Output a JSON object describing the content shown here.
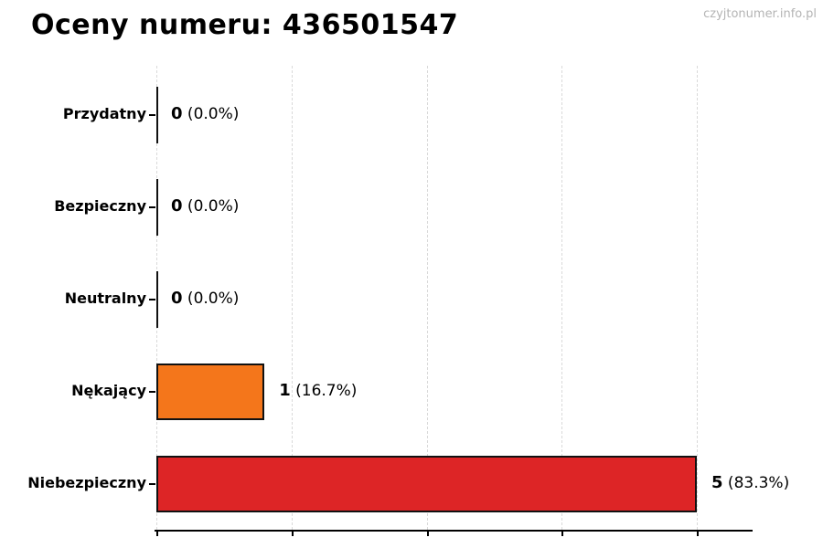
{
  "page": {
    "watermark": "czyjtonumer.info.pl"
  },
  "chart_data": {
    "type": "bar",
    "orientation": "horizontal",
    "title": "Oceny numeru: 436501547",
    "categories": [
      "Przydatny",
      "Bezpieczny",
      "Neutralny",
      "Nękający",
      "Niebezpieczny"
    ],
    "values": [
      0,
      0,
      0,
      1,
      5
    ],
    "percent_labels": [
      "(0.0%)",
      "(0.0%)",
      "(0.0%)",
      "(16.7%)",
      "(83.3%)"
    ],
    "value_labels": [
      "0",
      "0",
      "0",
      "1",
      "5"
    ],
    "bar_colors": [
      null,
      null,
      null,
      "#f4761b",
      "#dd2526"
    ],
    "bar_edge_color": "#111111",
    "xlabel": "",
    "ylabel": "",
    "xlim": [
      0,
      5.5
    ],
    "xticks": [
      0,
      1.25,
      2.5,
      3.75,
      5
    ],
    "grid": "vertical-dashed",
    "gridline_color": "#d9d9d9",
    "legend": "none"
  }
}
